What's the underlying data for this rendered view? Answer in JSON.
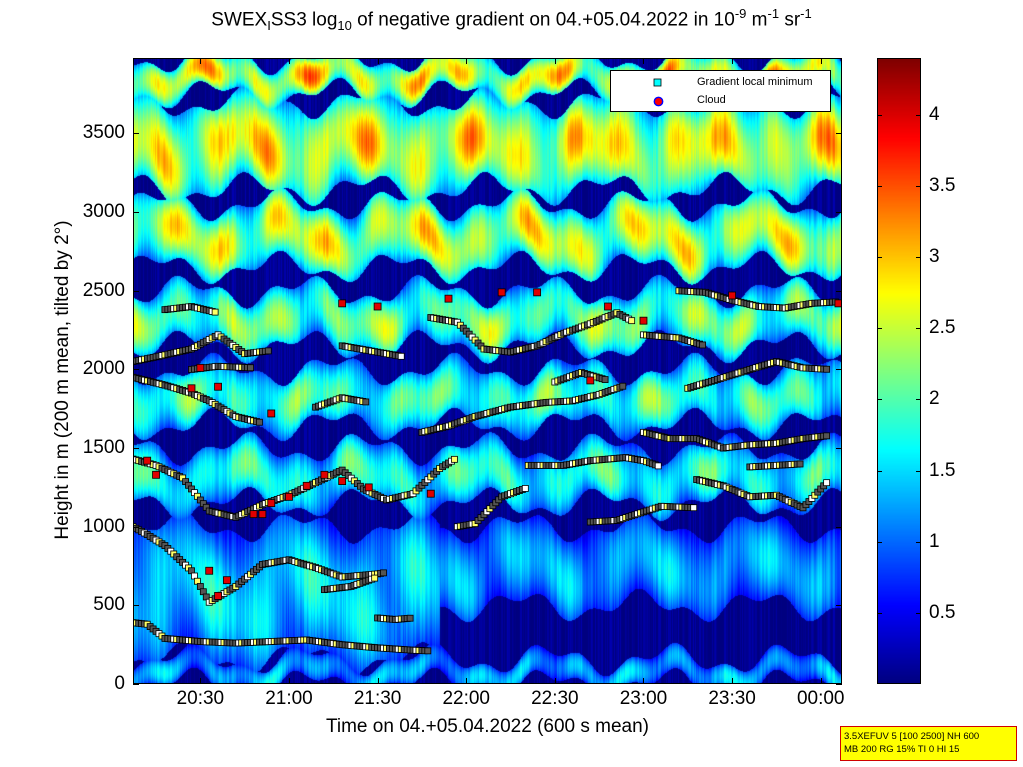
{
  "figure": {
    "title": {
      "prefix": "SWEX",
      "sub1": "I",
      "mid1": "SS3 log",
      "sub2": "10",
      "mid2": " of negative gradient on 04.+05.04.2022 in 10",
      "sup1": "-9",
      "mid3": " m",
      "sup2": "-1",
      "mid4": " sr",
      "sup3": "-1"
    },
    "xlabel": "Time on 04.+05.04.2022 (600 s mean)",
    "ylabel": "Height in m (200 m mean, tilted by 2°)",
    "info_box": {
      "line1": "3.5XEFUV 5 [100 2500] NH 600",
      "line2": "MB 200 RG 15% TI 0 HI 15"
    }
  },
  "chart_data": {
    "type": "heatmap",
    "title": "SWEX_I SS3 log10 of negative gradient on 04.+05.04.2022 in 10^-9 m^-1 sr^-1",
    "xlabel": "Time on 04.+05.04.2022 (600 s mean)",
    "ylabel": "Height in m (200 m mean, tilted by 2°)",
    "x_unit": "hours since 04.04.2022 00:00 (values above 24 are 05.04.2022)",
    "xlim": [
      20.12,
      24.12
    ],
    "ylim": [
      0,
      3980
    ],
    "x_ticks": [
      20.5,
      21.0,
      21.5,
      22.0,
      22.5,
      23.0,
      23.5,
      24.0
    ],
    "x_tick_labels": [
      "20:30",
      "21:00",
      "21:30",
      "22:00",
      "22:30",
      "23:00",
      "23:30",
      "00:00"
    ],
    "y_ticks": [
      0,
      500,
      1000,
      1500,
      2000,
      2500,
      3000,
      3500
    ],
    "y_tick_labels": [
      "0",
      "500",
      "1000",
      "1500",
      "2000",
      "2500",
      "3000",
      "3500"
    ],
    "colorbar": {
      "colormap": "jet",
      "clim": [
        0,
        4.4
      ],
      "ticks": [
        0.5,
        1,
        1.5,
        2,
        2.5,
        3,
        3.5,
        4
      ],
      "tick_labels": [
        "0.5",
        "1",
        "1.5",
        "2",
        "2.5",
        "3",
        "3.5",
        "4"
      ]
    },
    "legend": {
      "position": "top-right",
      "entries": [
        {
          "label": "Gradient local minimum",
          "marker": "square",
          "color": "#00ffff"
        },
        {
          "label": "Cloud",
          "marker": "circle",
          "color": "#ff0000",
          "edge": "#0000ff"
        }
      ]
    },
    "layers": [
      {
        "name": "surface",
        "x_start": 20.12,
        "x_end": 24.12,
        "y_base": 0,
        "y_top": 160,
        "intensity": 1.5
      },
      {
        "name": "boundary-layer",
        "x_start": 20.12,
        "x_end": 21.85,
        "y_base": 160,
        "y_top": 1000,
        "intensity": 1.7
      },
      {
        "name": "boundary-layer-residual",
        "x_start": 21.85,
        "x_end": 24.12,
        "y_base": 500,
        "y_top": 1000,
        "intensity": 1.45
      },
      {
        "name": "band-1300",
        "x_start": 20.12,
        "x_end": 24.12,
        "y_base": 1150,
        "y_top": 1500,
        "intensity": 2.0
      },
      {
        "name": "band-1800",
        "x_start": 20.12,
        "x_end": 24.12,
        "y_base": 1650,
        "y_top": 2000,
        "intensity": 2.2
      },
      {
        "name": "band-2300",
        "x_start": 20.12,
        "x_end": 24.12,
        "y_base": 2150,
        "y_top": 2500,
        "intensity": 2.4
      },
      {
        "name": "band-2800",
        "x_start": 20.12,
        "x_end": 24.12,
        "y_base": 2650,
        "y_top": 3050,
        "intensity": 2.8
      },
      {
        "name": "band-3400",
        "x_start": 20.12,
        "x_end": 24.12,
        "y_base": 3150,
        "y_top": 3700,
        "intensity": 3.0
      },
      {
        "name": "band-3900",
        "x_start": 20.12,
        "x_end": 24.12,
        "y_base": 3750,
        "y_top": 3980,
        "intensity": 3.1
      }
    ],
    "series": [
      {
        "name": "Gradient local minimum",
        "tracks": [
          {
            "points": [
              [
                20.12,
                390
              ],
              [
                20.2,
                380
              ],
              [
                20.3,
                290
              ],
              [
                20.5,
                270
              ],
              [
                20.7,
                260
              ],
              [
                20.9,
                270
              ],
              [
                21.1,
                280
              ],
              [
                21.3,
                250
              ],
              [
                21.5,
                230
              ],
              [
                21.7,
                215
              ],
              [
                21.8,
                210
              ]
            ]
          },
          {
            "points": [
              [
                20.12,
                1000
              ],
              [
                20.2,
                950
              ],
              [
                20.3,
                880
              ],
              [
                20.45,
                720
              ],
              [
                20.55,
                520
              ],
              [
                20.7,
                620
              ],
              [
                20.85,
                760
              ],
              [
                21.0,
                790
              ],
              [
                21.15,
                740
              ],
              [
                21.3,
                680
              ],
              [
                21.5,
                700
              ],
              [
                21.55,
                710
              ]
            ]
          },
          {
            "points": [
              [
                21.2,
                600
              ],
              [
                21.35,
                620
              ],
              [
                21.5,
                680
              ]
            ]
          },
          {
            "points": [
              [
                21.5,
                420
              ],
              [
                21.6,
                410
              ],
              [
                21.7,
                420
              ]
            ]
          },
          {
            "points": [
              [
                20.12,
                1430
              ],
              [
                20.25,
                1390
              ],
              [
                20.4,
                1310
              ],
              [
                20.55,
                1100
              ],
              [
                20.7,
                1060
              ],
              [
                20.85,
                1140
              ],
              [
                21.0,
                1200
              ],
              [
                21.15,
                1280
              ],
              [
                21.3,
                1360
              ],
              [
                21.42,
                1240
              ],
              [
                21.55,
                1170
              ],
              [
                21.7,
                1210
              ],
              [
                21.85,
                1370
              ],
              [
                21.95,
                1440
              ]
            ]
          },
          {
            "points": [
              [
                21.95,
                1000
              ],
              [
                22.05,
                1020
              ],
              [
                22.2,
                1190
              ],
              [
                22.35,
                1250
              ]
            ]
          },
          {
            "points": [
              [
                22.35,
                1390
              ],
              [
                22.55,
                1390
              ],
              [
                22.7,
                1420
              ],
              [
                22.9,
                1440
              ],
              [
                23.0,
                1420
              ],
              [
                23.1,
                1380
              ]
            ]
          },
          {
            "points": [
              [
                22.7,
                1030
              ],
              [
                22.85,
                1040
              ],
              [
                23.1,
                1130
              ],
              [
                23.3,
                1120
              ]
            ]
          },
          {
            "points": [
              [
                23.3,
                1300
              ],
              [
                23.45,
                1260
              ],
              [
                23.6,
                1190
              ],
              [
                23.75,
                1200
              ],
              [
                23.9,
                1120
              ],
              [
                24.05,
                1300
              ]
            ]
          },
          {
            "points": [
              [
                23.6,
                1380
              ],
              [
                23.75,
                1390
              ],
              [
                23.9,
                1400
              ]
            ]
          },
          {
            "points": [
              [
                23.0,
                1600
              ],
              [
                23.15,
                1560
              ],
              [
                23.3,
                1560
              ],
              [
                23.45,
                1500
              ],
              [
                23.6,
                1520
              ],
              [
                23.75,
                1530
              ],
              [
                23.9,
                1560
              ],
              [
                24.05,
                1580
              ]
            ]
          },
          {
            "points": [
              [
                20.12,
                1950
              ],
              [
                20.3,
                1900
              ],
              [
                20.45,
                1850
              ],
              [
                20.55,
                1800
              ],
              [
                20.7,
                1700
              ],
              [
                20.85,
                1660
              ]
            ]
          },
          {
            "points": [
              [
                20.45,
                2000
              ],
              [
                20.6,
                2020
              ],
              [
                20.8,
                2010
              ]
            ]
          },
          {
            "points": [
              [
                21.15,
                1760
              ],
              [
                21.3,
                1820
              ],
              [
                21.45,
                1790
              ]
            ]
          },
          {
            "points": [
              [
                21.75,
                1600
              ],
              [
                21.9,
                1640
              ],
              [
                22.05,
                1700
              ],
              [
                22.25,
                1760
              ],
              [
                22.45,
                1790
              ],
              [
                22.6,
                1800
              ],
              [
                22.75,
                1840
              ],
              [
                22.9,
                1900
              ]
            ]
          },
          {
            "points": [
              [
                22.5,
                1920
              ],
              [
                22.65,
                1980
              ],
              [
                22.8,
                1930
              ]
            ]
          },
          {
            "points": [
              [
                23.25,
                1880
              ],
              [
                23.4,
                1930
              ],
              [
                23.6,
                2000
              ],
              [
                23.75,
                2050
              ],
              [
                23.9,
                2010
              ],
              [
                24.05,
                2000
              ]
            ]
          },
          {
            "points": [
              [
                20.12,
                2050
              ],
              [
                20.25,
                2080
              ],
              [
                20.45,
                2130
              ],
              [
                20.6,
                2220
              ],
              [
                20.75,
                2100
              ],
              [
                20.9,
                2120
              ]
            ]
          },
          {
            "points": [
              [
                21.3,
                2150
              ],
              [
                21.45,
                2120
              ],
              [
                21.65,
                2080
              ]
            ]
          },
          {
            "points": [
              [
                21.8,
                2330
              ],
              [
                21.95,
                2300
              ],
              [
                22.1,
                2130
              ],
              [
                22.25,
                2110
              ],
              [
                22.4,
                2150
              ],
              [
                22.55,
                2230
              ],
              [
                22.7,
                2290
              ],
              [
                22.85,
                2360
              ],
              [
                22.95,
                2300
              ]
            ]
          },
          {
            "points": [
              [
                23.0,
                2220
              ],
              [
                23.2,
                2200
              ],
              [
                23.35,
                2150
              ]
            ]
          },
          {
            "points": [
              [
                23.2,
                2500
              ],
              [
                23.35,
                2490
              ],
              [
                23.5,
                2440
              ],
              [
                23.65,
                2400
              ],
              [
                23.8,
                2390
              ],
              [
                23.95,
                2420
              ],
              [
                24.1,
                2430
              ]
            ]
          },
          {
            "points": [
              [
                20.3,
                2380
              ],
              [
                20.45,
                2400
              ],
              [
                20.6,
                2360
              ]
            ]
          }
        ]
      },
      {
        "name": "Cloud",
        "points": [
          [
            20.55,
            720
          ],
          [
            20.6,
            560
          ],
          [
            20.65,
            660
          ],
          [
            20.8,
            1080
          ],
          [
            20.9,
            1150
          ],
          [
            21.0,
            1190
          ],
          [
            21.1,
            1260
          ],
          [
            21.2,
            1330
          ],
          [
            20.2,
            1420
          ],
          [
            20.25,
            1330
          ],
          [
            20.85,
            1080
          ],
          [
            21.3,
            1290
          ],
          [
            21.45,
            1250
          ],
          [
            21.8,
            1210
          ],
          [
            20.45,
            1880
          ],
          [
            20.6,
            1890
          ],
          [
            20.5,
            2010
          ],
          [
            20.9,
            1720
          ],
          [
            21.3,
            2420
          ],
          [
            21.5,
            2400
          ],
          [
            21.9,
            2450
          ],
          [
            22.2,
            2490
          ],
          [
            22.4,
            2490
          ],
          [
            22.7,
            1930
          ],
          [
            22.8,
            2400
          ],
          [
            23.0,
            2310
          ],
          [
            23.5,
            2470
          ],
          [
            24.1,
            2420
          ]
        ]
      }
    ]
  }
}
